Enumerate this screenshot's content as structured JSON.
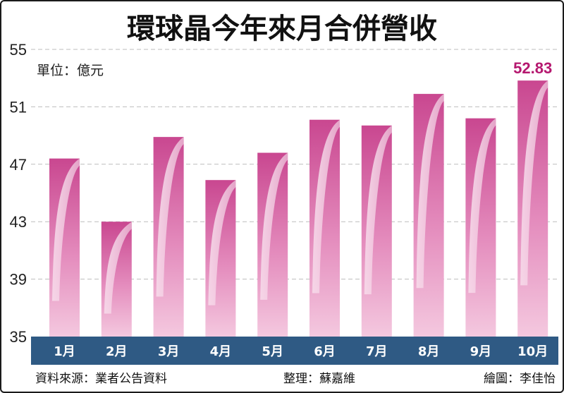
{
  "chart_data": {
    "type": "bar",
    "title": "環球晶今年來月合併營收",
    "unit": "單位：億元",
    "categories": [
      "1月",
      "2月",
      "3月",
      "4月",
      "5月",
      "6月",
      "7月",
      "8月",
      "9月",
      "10月"
    ],
    "values": [
      47.4,
      43.0,
      48.9,
      45.9,
      47.8,
      50.1,
      49.7,
      51.9,
      50.2,
      52.83
    ],
    "data_labels": [
      {
        "index": 9,
        "text": "52.83"
      }
    ],
    "ylim": [
      35,
      55
    ],
    "yticks": [
      35,
      39,
      43,
      47,
      51,
      55
    ],
    "grid": true,
    "xlabel": "",
    "ylabel": ""
  },
  "footer": {
    "source": "資料來源：業者公告資料",
    "editor": "整理：蘇嘉維",
    "illustrator": "繪圖：李佳怡"
  },
  "colors": {
    "bar_top": "#c94790",
    "bar_bottom": "#f4c8df",
    "axis_band": "#2f5a84",
    "highlight_label": "#b5186f",
    "grid": "#bdbdbd"
  }
}
